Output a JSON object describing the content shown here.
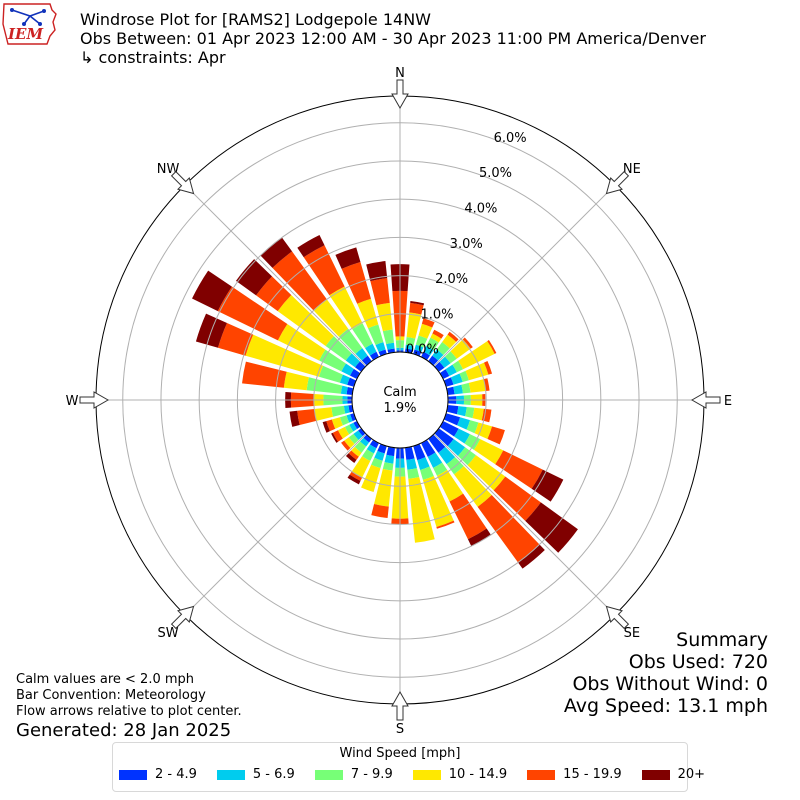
{
  "header": {
    "logo_text": "IEM",
    "title": "Windrose Plot for [RAMS2] Lodgepole 14NW",
    "period": "Obs Between: 01 Apr 2023 12:00 AM - 30 Apr 2023 11:00 PM America/Denver",
    "constraints": "↳ constraints: Apr"
  },
  "notes": {
    "calm": "Calm values are < 2.0 mph",
    "convention": "Bar Convention: Meteorology",
    "flow": "Flow arrows relative to plot center.",
    "generated": "Generated: 28 Jan 2025"
  },
  "summary": {
    "title": "Summary",
    "obs_used": "Obs Used: 720",
    "obs_without_wind": "Obs Without Wind: 0",
    "avg_speed": "Avg Speed: 13.1 mph"
  },
  "legend": {
    "title": "Wind Speed [mph]"
  },
  "chart_data": {
    "type": "windrose",
    "calm_label": "Calm",
    "calm_value": "1.9%",
    "r_tick_labels": [
      "0.0%",
      "1.0%",
      "2.0%",
      "3.0%",
      "4.0%",
      "5.0%",
      "6.0%"
    ],
    "r_ticks": [
      0,
      1,
      2,
      3,
      4,
      5,
      6
    ],
    "r_max": 6.7,
    "calm_radius_percent": 1.9,
    "compass_labels": [
      "N",
      "NE",
      "E",
      "SE",
      "S",
      "SW",
      "W",
      "NW"
    ],
    "speed_bins": [
      {
        "label": "2 - 4.9",
        "color": "#0033ff"
      },
      {
        "label": "5 - 6.9",
        "color": "#00ccee"
      },
      {
        "label": "7 - 9.9",
        "color": "#77ff77"
      },
      {
        "label": "10 - 14.9",
        "color": "#ffe800"
      },
      {
        "label": "15 - 19.9",
        "color": "#ff4400"
      },
      {
        "label": "20+",
        "color": "#800000"
      }
    ],
    "direction_step_degrees": 10,
    "cumulative_percent": {
      "0": [
        0.05,
        0.11,
        0.31,
        0.41,
        1.6,
        2.3
      ],
      "10": [
        0.1,
        0.2,
        0.4,
        1.05,
        1.3,
        1.35
      ],
      "20": [
        0.12,
        0.25,
        0.5,
        0.82,
        0.97,
        0.97
      ],
      "30": [
        0.15,
        0.32,
        0.56,
        0.68,
        0.79,
        0.79
      ],
      "40": [
        0.18,
        0.38,
        0.62,
        0.86,
        0.95,
        0.95
      ],
      "50": [
        0.18,
        0.38,
        0.58,
        1.03,
        1.1,
        1.1
      ],
      "60": [
        0.18,
        0.4,
        0.58,
        1.5,
        1.55,
        1.55
      ],
      "70": [
        0.2,
        0.45,
        0.62,
        1.15,
        1.25,
        1.25
      ],
      "80": [
        0.18,
        0.4,
        0.6,
        1.0,
        1.1,
        1.1
      ],
      "90": [
        0.22,
        0.42,
        0.6,
        0.9,
        0.98,
        0.98
      ],
      "100": [
        0.28,
        0.5,
        0.7,
        0.95,
        1.15,
        1.15
      ],
      "110": [
        0.38,
        0.65,
        0.88,
        1.25,
        1.6,
        1.6
      ],
      "120": [
        0.45,
        0.78,
        1.08,
        1.75,
        2.9,
        3.5
      ],
      "130": [
        0.48,
        0.85,
        1.2,
        2.15,
        3.3,
        4.5
      ],
      "140": [
        0.45,
        0.82,
        1.15,
        2.2,
        4.0,
        4.2
      ],
      "150": [
        0.4,
        0.72,
        0.95,
        1.7,
        2.8,
        3.0
      ],
      "160": [
        0.38,
        0.65,
        0.92,
        2.2,
        2.25,
        2.25
      ],
      "170": [
        0.32,
        0.58,
        0.82,
        2.5,
        2.5,
        2.5
      ],
      "180": [
        0.28,
        0.52,
        0.75,
        1.85,
        2.0,
        2.0
      ],
      "190": [
        0.22,
        0.42,
        0.6,
        1.55,
        1.85,
        1.85
      ],
      "200": [
        0.2,
        0.4,
        0.6,
        1.25,
        1.25,
        1.25
      ],
      "210": [
        0.15,
        0.3,
        0.52,
        1.0,
        1.1,
        1.2
      ],
      "220": [
        0.12,
        0.25,
        0.45,
        0.58,
        0.68,
        0.78
      ],
      "230": [
        0.1,
        0.25,
        0.4,
        0.55,
        0.65,
        0.65
      ],
      "240": [
        0.1,
        0.22,
        0.35,
        0.55,
        0.7,
        0.75
      ],
      "250": [
        0.1,
        0.2,
        0.38,
        0.6,
        0.75,
        0.85
      ],
      "260": [
        0.1,
        0.22,
        0.55,
        1.0,
        1.45,
        1.65
      ],
      "270": [
        0.12,
        0.25,
        0.75,
        1.0,
        1.6,
        1.75
      ],
      "280": [
        0.15,
        0.3,
        1.2,
        1.8,
        2.9,
        2.9
      ],
      "290": [
        0.18,
        0.38,
        0.95,
        2.95,
        3.7,
        4.3
      ],
      "300": [
        0.2,
        0.45,
        1.1,
        2.3,
        4.05,
        4.8
      ],
      "310": [
        0.2,
        0.5,
        1.15,
        2.7,
        3.4,
        4.05
      ],
      "320": [
        0.18,
        0.42,
        1.05,
        2.0,
        3.55,
        4.0
      ],
      "330": [
        0.15,
        0.38,
        0.98,
        2.05,
        3.25,
        3.55
      ],
      "340": [
        0.12,
        0.32,
        0.8,
        1.5,
        2.5,
        2.9
      ],
      "350": [
        0.1,
        0.25,
        0.6,
        1.3,
        1.95,
        2.4
      ]
    }
  }
}
